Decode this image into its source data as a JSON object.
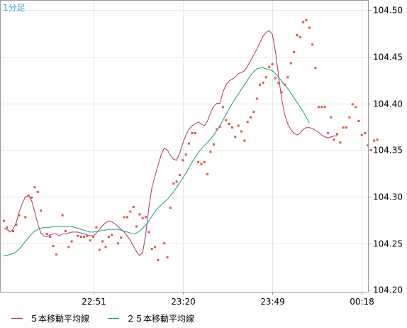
{
  "period_label": "1分足",
  "colors": {
    "ma5": "#b0306a",
    "ma25": "#1a9a7a",
    "price_points": "#d8583a",
    "period_label": "#3aa0d8",
    "grid": "#e6e6e6",
    "frame": "#9a9a9a"
  },
  "legend": {
    "ma5": "５本移動平均線",
    "ma25": "２５本移動平均線"
  },
  "chart_data": {
    "type": "line",
    "x_ticks": [
      "22:51",
      "23:20",
      "23:49",
      "00:18"
    ],
    "x_tick_index": [
      29,
      58,
      87,
      116
    ],
    "x_range": [
      -1,
      118
    ],
    "y_ticks": [
      "104.20",
      "104.25",
      "104.30",
      "104.35",
      "104.40",
      "104.45",
      "104.50"
    ],
    "ylim": [
      104.198,
      104.51
    ],
    "grid": true,
    "legend_position": "bottom",
    "series": [
      {
        "name": "５本移動平均線",
        "type": "line",
        "color": "#b0306a",
        "values": [
          104.266,
          104.265,
          104.262,
          104.265,
          104.272,
          104.284,
          104.293,
          104.3,
          104.301,
          104.296,
          104.284,
          104.271,
          104.261,
          104.258,
          104.257,
          104.259,
          104.26,
          104.26,
          104.258,
          104.26,
          104.26,
          104.261,
          104.262,
          104.262,
          104.262,
          104.261,
          104.26,
          104.259,
          104.258,
          104.258,
          104.261,
          104.265,
          104.269,
          104.272,
          104.274,
          104.273,
          104.271,
          104.268,
          104.265,
          104.262,
          104.258,
          104.253,
          104.247,
          104.241,
          104.237,
          104.24,
          104.26,
          104.288,
          104.31,
          104.322,
          104.334,
          104.345,
          104.352,
          104.35,
          104.344,
          104.34,
          104.339,
          104.347,
          104.357,
          104.366,
          104.372,
          104.376,
          104.378,
          104.38,
          104.378,
          104.376,
          104.381,
          104.39,
          104.397,
          104.4,
          104.4,
          104.412,
          104.42,
          104.424,
          104.426,
          104.428,
          104.432,
          104.433,
          104.435,
          104.44,
          104.446,
          104.452,
          104.458,
          104.465,
          104.472,
          104.476,
          104.478,
          104.474,
          104.456,
          104.43,
          104.405,
          104.388,
          104.378,
          104.372,
          104.368,
          104.366,
          104.368,
          104.372,
          104.374,
          104.374,
          104.373,
          104.371,
          104.369,
          104.366,
          104.364,
          104.363,
          104.364,
          104.365,
          104.365
        ]
      },
      {
        "name": "２５本移動平均線",
        "type": "line",
        "color": "#1a9a7a",
        "values": [
          104.237,
          104.237,
          104.238,
          104.239,
          104.241,
          104.244,
          104.248,
          104.252,
          104.256,
          104.26,
          104.263,
          104.265,
          104.266,
          104.267,
          104.267,
          104.267,
          104.268,
          104.268,
          104.268,
          104.268,
          104.268,
          104.268,
          104.268,
          104.267,
          104.266,
          104.265,
          104.264,
          104.263,
          104.262,
          104.262,
          104.263,
          104.263,
          104.264,
          104.264,
          104.265,
          104.265,
          104.265,
          104.265,
          104.264,
          104.263,
          104.262,
          104.261,
          104.26,
          104.261,
          104.263,
          104.266,
          104.27,
          104.274,
          104.279,
          104.284,
          104.288,
          104.291,
          104.294,
          104.297,
          104.301,
          104.305,
          104.31,
          104.315,
          104.32,
          104.325,
          104.331,
          104.337,
          104.342,
          104.347,
          104.351,
          104.355,
          104.358,
          104.362,
          104.366,
          104.371,
          104.376,
          104.382,
          104.388,
          104.394,
          104.4,
          104.405,
          104.41,
          104.415,
          104.42,
          104.425,
          104.43,
          104.434,
          104.437,
          104.438,
          104.438,
          104.437,
          104.436,
          104.435,
          104.432,
          104.428,
          104.424,
          104.42,
          104.416,
          104.411,
          104.406,
          104.401,
          104.396,
          104.391,
          104.385,
          104.379
        ]
      },
      {
        "name": "",
        "type": "scatter",
        "color": "#d8583a",
        "points": [
          [
            0,
            104.274
          ],
          [
            1,
            104.267
          ],
          [
            3,
            104.263
          ],
          [
            4,
            104.27
          ],
          [
            5,
            104.28
          ],
          [
            7,
            104.278
          ],
          [
            8,
            104.301
          ],
          [
            9,
            104.299
          ],
          [
            10,
            104.31
          ],
          [
            11,
            104.305
          ],
          [
            12,
            104.285
          ],
          [
            14,
            104.26
          ],
          [
            15,
            104.257
          ],
          [
            16,
            104.247
          ],
          [
            17,
            104.238
          ],
          [
            19,
            104.28
          ],
          [
            20,
            104.263
          ],
          [
            21,
            104.246
          ],
          [
            22,
            104.252
          ],
          [
            24,
            104.258
          ],
          [
            25,
            104.257
          ],
          [
            26,
            104.257
          ],
          [
            27,
            104.258
          ],
          [
            28,
            104.253
          ],
          [
            29,
            104.257
          ],
          [
            30,
            104.267
          ],
          [
            31,
            104.243
          ],
          [
            32,
            104.252
          ],
          [
            33,
            104.246
          ],
          [
            34,
            104.257
          ],
          [
            35,
            104.259
          ],
          [
            37,
            104.25
          ],
          [
            38,
            104.256
          ],
          [
            39,
            104.278
          ],
          [
            40,
            104.278
          ],
          [
            41,
            104.284
          ],
          [
            42,
            104.289
          ],
          [
            43,
            104.268
          ],
          [
            44,
            104.281
          ],
          [
            45,
            104.277
          ],
          [
            46,
            104.278
          ],
          [
            47,
            104.262
          ],
          [
            48,
            104.244
          ],
          [
            49,
            104.246
          ],
          [
            50,
            104.232
          ],
          [
            52,
            104.25
          ],
          [
            53,
            104.235
          ],
          [
            54,
            104.288
          ],
          [
            55,
            104.314
          ],
          [
            56,
            104.316
          ],
          [
            57,
            104.323
          ],
          [
            58,
            104.339
          ],
          [
            59,
            104.345
          ],
          [
            60,
            104.357
          ],
          [
            61,
            104.368
          ],
          [
            62,
            104.368
          ],
          [
            63,
            104.337
          ],
          [
            64,
            104.335
          ],
          [
            65,
            104.337
          ],
          [
            66,
            104.324
          ],
          [
            67,
            104.348
          ],
          [
            68,
            104.356
          ],
          [
            69,
            104.372
          ],
          [
            70,
            104.375
          ],
          [
            71,
            104.396
          ],
          [
            72,
            104.382
          ],
          [
            73,
            104.378
          ],
          [
            74,
            104.374
          ],
          [
            75,
            104.364
          ],
          [
            76,
            104.376
          ],
          [
            77,
            104.37
          ],
          [
            78,
            104.36
          ],
          [
            79,
            104.38
          ],
          [
            80,
            104.385
          ],
          [
            81,
            104.391
          ],
          [
            82,
            104.405
          ],
          [
            83,
            104.42
          ],
          [
            84,
            104.422
          ],
          [
            85,
            104.428
          ],
          [
            86,
            104.439
          ],
          [
            87,
            104.442
          ],
          [
            88,
            104.427
          ],
          [
            89,
            104.422
          ],
          [
            90,
            104.412
          ],
          [
            91,
            104.42
          ],
          [
            92,
            104.428
          ],
          [
            93,
            104.443
          ],
          [
            94,
            104.455
          ],
          [
            95,
            104.473
          ],
          [
            96,
            104.471
          ],
          [
            97,
            104.487
          ],
          [
            98,
            104.489
          ],
          [
            99,
            104.481
          ],
          [
            100,
            104.463
          ],
          [
            101,
            104.438
          ],
          [
            102,
            104.396
          ],
          [
            103,
            104.396
          ],
          [
            104,
            104.396
          ],
          [
            105,
            104.368
          ],
          [
            106,
            104.385
          ],
          [
            107,
            104.361
          ],
          [
            108,
            104.367
          ],
          [
            109,
            104.358
          ],
          [
            110,
            104.374
          ],
          [
            111,
            104.374
          ],
          [
            112,
            104.385
          ],
          [
            113,
            104.399
          ],
          [
            114,
            104.396
          ],
          [
            115,
            104.381
          ],
          [
            116,
            104.366
          ],
          [
            117,
            104.368
          ],
          [
            118,
            104.355
          ],
          [
            119,
            104.35
          ],
          [
            120,
            104.36
          ],
          [
            121,
            104.361
          ]
        ]
      }
    ]
  }
}
